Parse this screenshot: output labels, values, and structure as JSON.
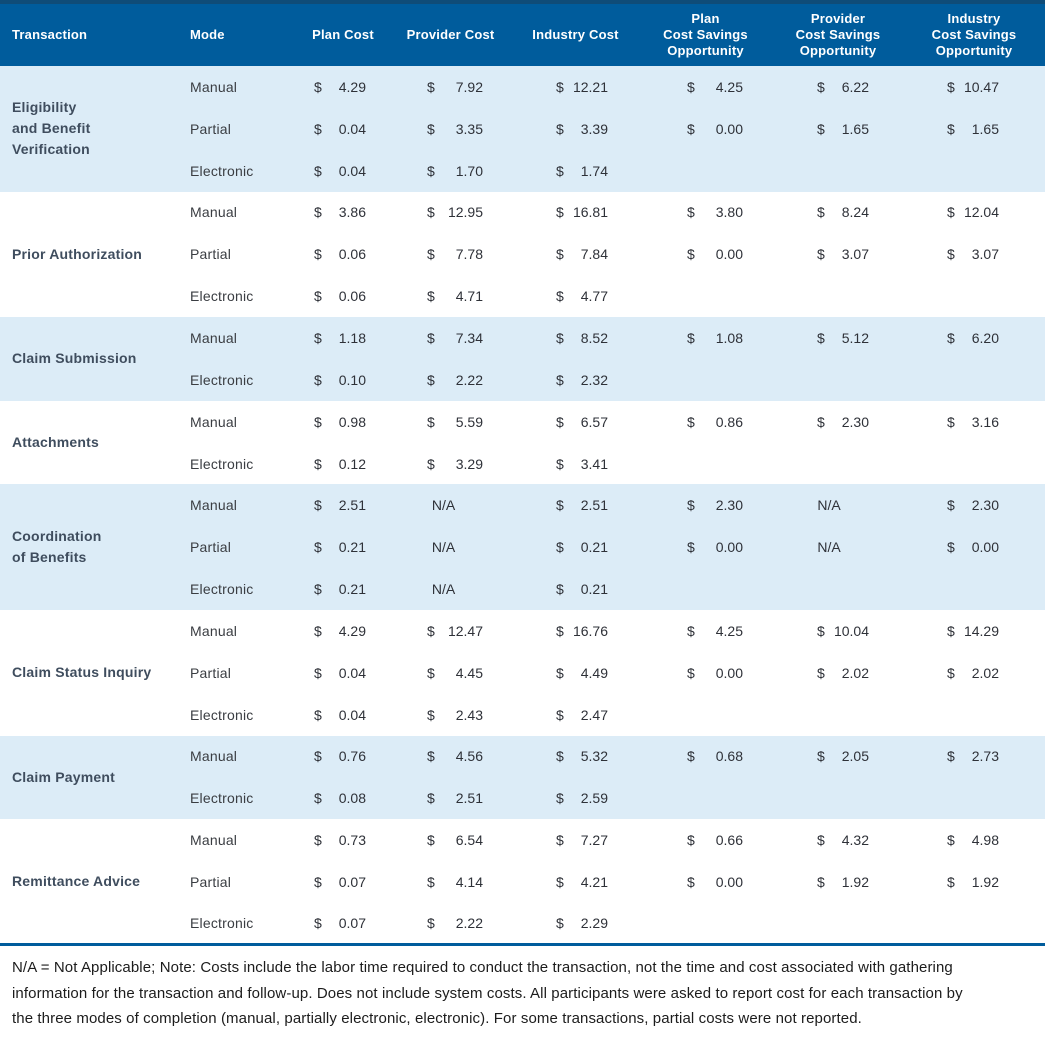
{
  "colors": {
    "header_bg": "#005C9C",
    "header_top_border": "#0F4C78",
    "row_alt_bg": "#DCECF7",
    "transaction_text": "#3F4D5E",
    "number_text": "#2E3138",
    "bottom_rule": "#005C9C",
    "note_text": "#1C1C1C"
  },
  "currency_symbol": "$",
  "na_label": "N/A",
  "table": {
    "columns": [
      {
        "id": "transaction",
        "lines": [
          "Transaction"
        ]
      },
      {
        "id": "mode",
        "lines": [
          "Mode"
        ]
      },
      {
        "id": "plan",
        "lines": [
          "Plan Cost"
        ]
      },
      {
        "id": "provider",
        "lines": [
          "Provider Cost"
        ]
      },
      {
        "id": "industry",
        "lines": [
          "Industry Cost"
        ]
      },
      {
        "id": "plansav",
        "lines": [
          "Plan",
          "Cost Savings",
          "Opportunity"
        ]
      },
      {
        "id": "provsav",
        "lines": [
          "Provider",
          "Cost Savings",
          "Opportunity"
        ]
      },
      {
        "id": "indsav",
        "lines": [
          "Industry",
          "Cost Savings",
          "Opportunity"
        ]
      }
    ],
    "groups": [
      {
        "name_lines": [
          "Eligibility",
          "and Benefit",
          "Verification"
        ],
        "shaded": true,
        "rows": [
          {
            "mode": "Manual",
            "plan": "4.29",
            "provider": "7.92",
            "industry": "12.21",
            "plansav": "4.25",
            "provsav": "6.22",
            "indsav": "10.47"
          },
          {
            "mode": "Partial",
            "plan": "0.04",
            "provider": "3.35",
            "industry": "3.39",
            "plansav": "0.00",
            "provsav": "1.65",
            "indsav": "1.65"
          },
          {
            "mode": "Electronic",
            "plan": "0.04",
            "provider": "1.70",
            "industry": "1.74",
            "plansav": "",
            "provsav": "",
            "indsav": ""
          }
        ]
      },
      {
        "name_lines": [
          "Prior Authorization"
        ],
        "shaded": false,
        "rows": [
          {
            "mode": "Manual",
            "plan": "3.86",
            "provider": "12.95",
            "industry": "16.81",
            "plansav": "3.80",
            "provsav": "8.24",
            "indsav": "12.04"
          },
          {
            "mode": "Partial",
            "plan": "0.06",
            "provider": "7.78",
            "industry": "7.84",
            "plansav": "0.00",
            "provsav": "3.07",
            "indsav": "3.07"
          },
          {
            "mode": "Electronic",
            "plan": "0.06",
            "provider": "4.71",
            "industry": "4.77",
            "plansav": "",
            "provsav": "",
            "indsav": ""
          }
        ]
      },
      {
        "name_lines": [
          "Claim Submission"
        ],
        "shaded": true,
        "rows": [
          {
            "mode": "Manual",
            "plan": "1.18",
            "provider": "7.34",
            "industry": "8.52",
            "plansav": "1.08",
            "provsav": "5.12",
            "indsav": "6.20"
          },
          {
            "mode": "Electronic",
            "plan": "0.10",
            "provider": "2.22",
            "industry": "2.32",
            "plansav": "",
            "provsav": "",
            "indsav": ""
          }
        ]
      },
      {
        "name_lines": [
          "Attachments"
        ],
        "shaded": false,
        "rows": [
          {
            "mode": "Manual",
            "plan": "0.98",
            "provider": "5.59",
            "industry": "6.57",
            "plansav": "0.86",
            "provsav": "2.30",
            "indsav": "3.16"
          },
          {
            "mode": "Electronic",
            "plan": "0.12",
            "provider": "3.29",
            "industry": "3.41",
            "plansav": "",
            "provsav": "",
            "indsav": ""
          }
        ]
      },
      {
        "name_lines": [
          "Coordination",
          "of Benefits"
        ],
        "shaded": true,
        "rows": [
          {
            "mode": "Manual",
            "plan": "2.51",
            "provider": "N/A",
            "industry": "2.51",
            "plansav": "2.30",
            "provsav": "N/A",
            "indsav": "2.30"
          },
          {
            "mode": "Partial",
            "plan": "0.21",
            "provider": "N/A",
            "industry": "0.21",
            "plansav": "0.00",
            "provsav": "N/A",
            "indsav": "0.00"
          },
          {
            "mode": "Electronic",
            "plan": "0.21",
            "provider": "N/A",
            "industry": "0.21",
            "plansav": "",
            "provsav": "",
            "indsav": ""
          }
        ]
      },
      {
        "name_lines": [
          "Claim Status Inquiry"
        ],
        "shaded": false,
        "rows": [
          {
            "mode": "Manual",
            "plan": "4.29",
            "provider": "12.47",
            "industry": "16.76",
            "plansav": "4.25",
            "provsav": "10.04",
            "indsav": "14.29"
          },
          {
            "mode": "Partial",
            "plan": "0.04",
            "provider": "4.45",
            "industry": "4.49",
            "plansav": "0.00",
            "provsav": "2.02",
            "indsav": "2.02"
          },
          {
            "mode": "Electronic",
            "plan": "0.04",
            "provider": "2.43",
            "industry": "2.47",
            "plansav": "",
            "provsav": "",
            "indsav": ""
          }
        ]
      },
      {
        "name_lines": [
          "Claim Payment"
        ],
        "shaded": true,
        "rows": [
          {
            "mode": "Manual",
            "plan": "0.76",
            "provider": "4.56",
            "industry": "5.32",
            "plansav": "0.68",
            "provsav": "2.05",
            "indsav": "2.73"
          },
          {
            "mode": "Electronic",
            "plan": "0.08",
            "provider": "2.51",
            "industry": "2.59",
            "plansav": "",
            "provsav": "",
            "indsav": ""
          }
        ]
      },
      {
        "name_lines": [
          "Remittance Advice"
        ],
        "shaded": false,
        "rows": [
          {
            "mode": "Manual",
            "plan": "0.73",
            "provider": "6.54",
            "industry": "7.27",
            "plansav": "0.66",
            "provsav": "4.32",
            "indsav": "4.98"
          },
          {
            "mode": "Partial",
            "plan": "0.07",
            "provider": "4.14",
            "industry": "4.21",
            "plansav": "0.00",
            "provsav": "1.92",
            "indsav": "1.92"
          },
          {
            "mode": "Electronic",
            "plan": "0.07",
            "provider": "2.22",
            "industry": "2.29",
            "plansav": "",
            "provsav": "",
            "indsav": ""
          }
        ]
      }
    ]
  },
  "note": "N/A = Not Applicable; Note: Costs include the labor time required to conduct the transaction, not the time and cost associated with gathering information for the transaction and follow-up. Does not include system costs. All participants were asked to report cost for each transaction by the three modes of completion (manual, partially electronic, electronic). For some transactions, partial costs were not reported."
}
